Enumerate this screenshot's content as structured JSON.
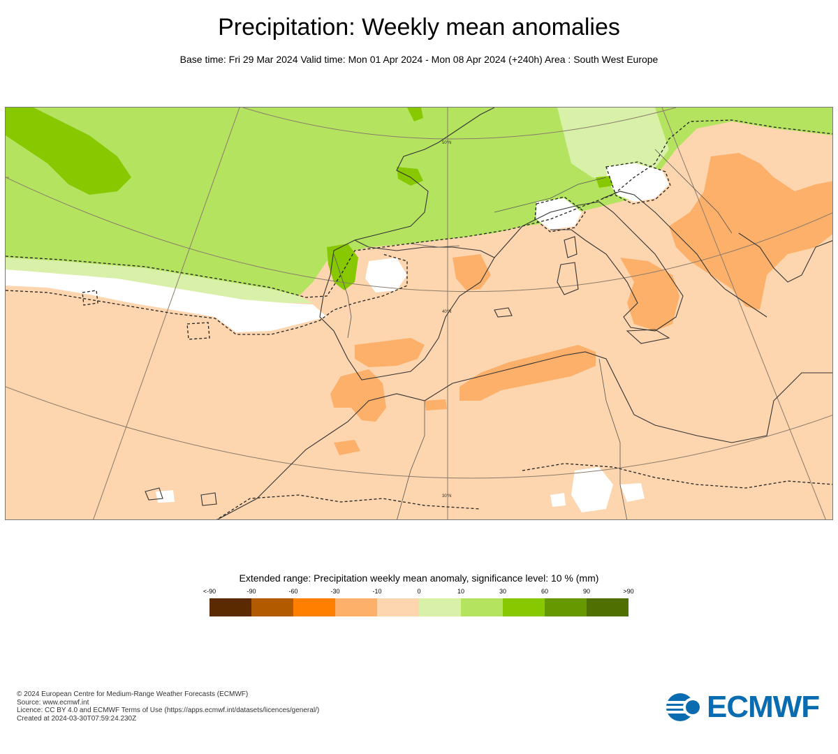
{
  "header": {
    "title": "Precipitation: Weekly mean anomalies",
    "subtitle": "Base time: Fri 29 Mar 2024 Valid time: Mon 01 Apr 2024 - Mon 08 Apr 2024 (+240h) Area : South West Europe"
  },
  "map": {
    "lat_labels": [
      "50°N",
      "40°N",
      "30°N"
    ],
    "colors": {
      "neg_10_0": "#fdd5ae",
      "neg_30_10": "#fdb06a",
      "pos_0_10": "#d8f0a8",
      "pos_10_30": "#b4e360",
      "pos_30_60": "#88c800",
      "not_significant": "#ffffff"
    }
  },
  "legend": {
    "title": "Extended range: Precipitation weekly mean anomaly, significance level: 10 % (mm)",
    "ticks": [
      "<-90",
      "-90",
      "-60",
      "-30",
      "-10",
      "0",
      "10",
      "30",
      "60",
      "90",
      ">90"
    ],
    "swatches": [
      {
        "name": "below-minus-90",
        "color": "#5c2a00"
      },
      {
        "name": "minus-90-to-60",
        "color": "#b15a00"
      },
      {
        "name": "minus-60-to-30",
        "color": "#ff8000"
      },
      {
        "name": "minus-30-to-10",
        "color": "#fdb06a"
      },
      {
        "name": "minus-10-to-0",
        "color": "#fdd5ae"
      },
      {
        "name": "0-to-10",
        "color": "#d8f0a8"
      },
      {
        "name": "10-to-30",
        "color": "#b4e360"
      },
      {
        "name": "30-to-60",
        "color": "#88c800"
      },
      {
        "name": "60-to-90",
        "color": "#669900"
      },
      {
        "name": "above-90",
        "color": "#4f7000"
      }
    ]
  },
  "footer": {
    "copyright": "© 2024 European Centre for Medium-Range Weather Forecasts (ECMWF)",
    "source": "Source: www.ecmwf.int",
    "licence": "Licence: CC BY 4.0 and ECMWF Terms of Use (https://apps.ecmwf.int/datasets/licences/general/)",
    "created": "Created at 2024-03-30T07:59:24.230Z"
  },
  "logo": {
    "text": "ECMWF",
    "color": "#0a6cb0"
  }
}
